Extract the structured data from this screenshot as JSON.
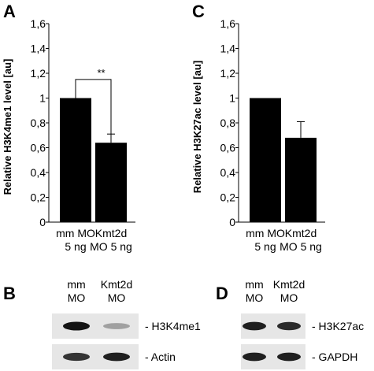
{
  "panels": {
    "A": "A",
    "B": "B",
    "C": "C",
    "D": "D"
  },
  "chart_data": [
    {
      "panel": "A",
      "type": "bar",
      "categories": [
        [
          "mm MO",
          "5 ng"
        ],
        [
          "Kmt2d",
          "MO 5 ng"
        ]
      ],
      "values": [
        1.0,
        0.64
      ],
      "error_bars": [
        0.0,
        0.07
      ],
      "ylabel": "Relative H3K4me1 level [au]",
      "ylim": [
        0,
        1.6
      ],
      "yticks": [
        "0",
        "0,2",
        "0,4",
        "0,6",
        "0,8",
        "1",
        "1,2",
        "1,4",
        "1,6"
      ],
      "annotation": "**",
      "grid": false,
      "bar_color": "#000000"
    },
    {
      "panel": "C",
      "type": "bar",
      "categories": [
        [
          "mm MO",
          "5 ng"
        ],
        [
          "Kmt2d",
          "MO 5 ng"
        ]
      ],
      "values": [
        1.0,
        0.68
      ],
      "error_bars": [
        0.0,
        0.13
      ],
      "ylabel": "Relative H3K27ac level [au]",
      "ylim": [
        0,
        1.6
      ],
      "yticks": [
        "0",
        "0,2",
        "0,4",
        "0,6",
        "0,8",
        "1",
        "1,2",
        "1,4",
        "1,6"
      ],
      "grid": false,
      "bar_color": "#000000"
    }
  ],
  "blots": {
    "B": {
      "lanes": [
        [
          "mm",
          "MO"
        ],
        [
          "Kmt2d",
          "MO"
        ]
      ],
      "rows": [
        {
          "label": "- H3K4me1",
          "intensities": [
            1.0,
            0.35
          ]
        },
        {
          "label": "- Actin",
          "intensities": [
            0.85,
            0.95
          ]
        }
      ]
    },
    "D": {
      "lanes": [
        [
          "mm",
          "MO"
        ],
        [
          "Kmt2d",
          "MO"
        ]
      ],
      "rows": [
        {
          "label": "- H3K27ac",
          "intensities": [
            0.95,
            0.9
          ]
        },
        {
          "label": "- GAPDH",
          "intensities": [
            0.95,
            0.95
          ]
        }
      ]
    }
  }
}
